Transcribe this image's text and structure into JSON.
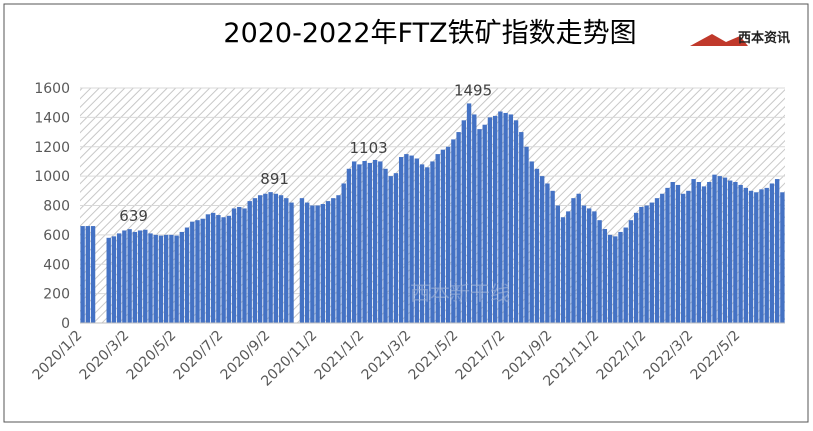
{
  "chart_data": {
    "type": "bar",
    "title": "2020-2022年FTZ铁矿指数走势图",
    "logo": "西本资讯",
    "watermark": "西本新干线",
    "color": "#4472c4",
    "categories": [
      "2020/1/2",
      null,
      null,
      null,
      null,
      null,
      null,
      null,
      null,
      "2020/3/2",
      null,
      null,
      null,
      null,
      null,
      null,
      null,
      null,
      "2020/5/2",
      null,
      null,
      null,
      null,
      null,
      null,
      null,
      null,
      "2020/7/2",
      null,
      null,
      null,
      null,
      null,
      null,
      null,
      null,
      "2020/9/2",
      null,
      null,
      null,
      null,
      null,
      null,
      null,
      null,
      "2020/11/2",
      null,
      null,
      null,
      null,
      null,
      null,
      null,
      null,
      "2021/1/2",
      null,
      null,
      null,
      null,
      null,
      null,
      null,
      null,
      "2021/3/2",
      null,
      null,
      null,
      null,
      null,
      null,
      null,
      null,
      "2021/5/2",
      null,
      null,
      null,
      null,
      null,
      null,
      null,
      null,
      "2021/7/2",
      null,
      null,
      null,
      null,
      null,
      null,
      null,
      null,
      "2021/9/2",
      null,
      null,
      null,
      null,
      null,
      null,
      null,
      null,
      "2021/11/2",
      null,
      null,
      null,
      null,
      null,
      null,
      null,
      null,
      "2022/1/2",
      null,
      null,
      null,
      null,
      null,
      null,
      null,
      null,
      "2022/3/2",
      null,
      null,
      null,
      null,
      null,
      null,
      null,
      null,
      "2022/5/2",
      null,
      null,
      null,
      null,
      null,
      null,
      null,
      null
    ],
    "values": [
      660,
      660,
      660,
      null,
      null,
      580,
      590,
      610,
      630,
      639,
      620,
      630,
      635,
      610,
      600,
      595,
      600,
      600,
      595,
      620,
      650,
      690,
      700,
      710,
      740,
      750,
      735,
      720,
      730,
      780,
      790,
      780,
      830,
      850,
      870,
      880,
      891,
      880,
      870,
      850,
      820,
      null,
      850,
      820,
      800,
      800,
      810,
      830,
      850,
      870,
      950,
      1050,
      1100,
      1080,
      1103,
      1090,
      1110,
      1100,
      1050,
      1000,
      1020,
      1130,
      1150,
      1140,
      1120,
      1080,
      1060,
      1100,
      1150,
      1180,
      1200,
      1250,
      1300,
      1380,
      1495,
      1420,
      1320,
      1350,
      1400,
      1410,
      1440,
      1430,
      1420,
      1380,
      1300,
      1200,
      1100,
      1050,
      1000,
      950,
      900,
      800,
      720,
      760,
      850,
      880,
      800,
      780,
      760,
      700,
      640,
      600,
      590,
      620,
      650,
      700,
      750,
      790,
      800,
      820,
      850,
      880,
      920,
      960,
      940,
      880,
      900,
      980,
      960,
      930,
      960,
      1010,
      1000,
      990,
      970,
      960,
      940,
      920,
      900,
      890,
      910,
      920,
      950,
      980,
      890
    ],
    "value_labels": [
      null,
      null,
      null,
      null,
      null,
      null,
      null,
      null,
      null,
      "639",
      null,
      null,
      null,
      null,
      null,
      null,
      null,
      null,
      null,
      null,
      null,
      null,
      null,
      null,
      null,
      null,
      null,
      null,
      null,
      null,
      null,
      null,
      null,
      null,
      null,
      null,
      "891",
      null,
      null,
      null,
      null,
      null,
      null,
      null,
      null,
      null,
      null,
      null,
      null,
      null,
      null,
      null,
      null,
      null,
      "1103",
      null,
      null,
      null,
      null,
      null,
      null,
      null,
      null,
      null,
      null,
      null,
      null,
      null,
      null,
      null,
      null,
      null,
      null,
      null,
      "1495",
      null,
      null,
      null,
      null,
      null,
      null,
      null,
      null,
      null,
      null,
      null,
      null,
      null,
      null,
      null,
      null,
      null,
      null,
      null,
      null,
      null,
      null,
      null,
      null,
      null,
      null,
      null,
      null,
      null,
      null,
      null,
      null,
      null,
      null,
      null,
      null,
      null,
      null,
      null,
      null,
      null,
      null,
      null,
      null,
      null,
      null,
      null,
      null,
      null,
      null,
      null,
      null,
      null,
      null,
      null,
      null,
      null,
      null,
      null,
      null
    ],
    "ylim": [
      0,
      1600
    ],
    "yticks": [
      0,
      200,
      400,
      600,
      800,
      1000,
      1200,
      1400,
      1600
    ],
    "grid": true
  }
}
